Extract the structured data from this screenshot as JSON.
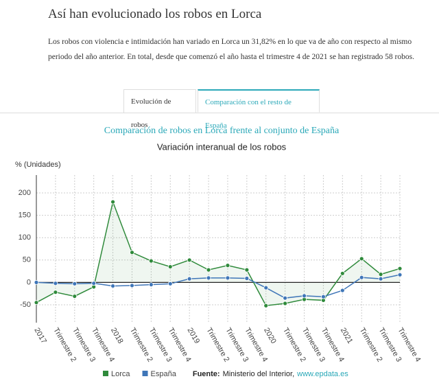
{
  "header": {
    "title": "Así han evolucionado los robos en Lorca",
    "text": "Los robos con violencia e intimidación han variado en Lorca un 31,82% en lo que va de año con respecto al mismo periodo del año anterior. En total, desde que comenzó el año hasta el trimestre 4 de 2021 se han registrado 58 robos.",
    "tabs": [
      "Evolución de robos",
      "Comparación con el resto de España"
    ]
  },
  "chart_data": {
    "type": "line",
    "title": "Comparación de robos en Lorca frente al conjunto de España",
    "subtitle": "Variación interanual de los robos",
    "y_label": "% (Unidades)",
    "categories": [
      "2017",
      "Trimestre 2",
      "Trimestre 3",
      "Trimestre 4",
      "2018",
      "Trimestre 2",
      "Trimestre 3",
      "Trimestre 4",
      "2019",
      "Trimestre 2",
      "Trimestre 3",
      "Trimestre 4",
      "2020",
      "Trimestre 2",
      "Trimestre 3",
      "Trimestre 4",
      "2021",
      "Trimestre 2",
      "Trimestre 3",
      "Trimestre 4"
    ],
    "series": [
      {
        "name": "Lorca",
        "color": "#2f8a3b",
        "area": true,
        "values": [
          -45,
          -22,
          -31,
          -10,
          180,
          67,
          48,
          35,
          50,
          28,
          38,
          28,
          -52,
          -47,
          -38,
          -40,
          20,
          53,
          18,
          31
        ]
      },
      {
        "name": "España",
        "color": "#3f76b8",
        "values": [
          0,
          -2,
          -3,
          -2,
          -8,
          -7,
          -5,
          -3,
          8,
          10,
          10,
          9,
          -12,
          -35,
          -30,
          -32,
          -18,
          11,
          8,
          17
        ]
      }
    ],
    "ylim": [
      -90,
      240
    ],
    "yticks": [
      -50,
      0,
      50,
      100,
      150,
      200
    ],
    "grid": true,
    "source": {
      "label": "Fuente:",
      "text": "Ministerio del Interior,",
      "link": "www.epdata.es"
    }
  }
}
